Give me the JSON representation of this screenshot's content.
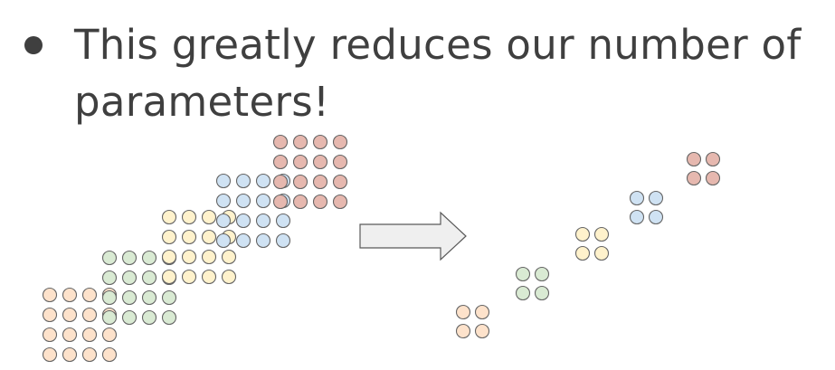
{
  "bullet_text": "This greatly reduces our number of parameters!",
  "colors": {
    "text": "#3f3f3f",
    "orange": "#fde2cb",
    "green": "#d9ead3",
    "yellow": "#fff2cc",
    "blue": "#cfe2f3",
    "red": "#e6b8af",
    "stroke": "#666666",
    "arrow_fill": "#efefef",
    "arrow_stroke": "#595959"
  },
  "diagram": {
    "left_grids": [
      {
        "color": "orange",
        "rows": 4,
        "cols": 4
      },
      {
        "color": "green",
        "rows": 4,
        "cols": 4
      },
      {
        "color": "yellow",
        "rows": 4,
        "cols": 4
      },
      {
        "color": "blue",
        "rows": 4,
        "cols": 4
      },
      {
        "color": "red",
        "rows": 4,
        "cols": 4
      }
    ],
    "right_grids": [
      {
        "color": "orange",
        "rows": 2,
        "cols": 2
      },
      {
        "color": "green",
        "rows": 2,
        "cols": 2
      },
      {
        "color": "yellow",
        "rows": 2,
        "cols": 2
      },
      {
        "color": "blue",
        "rows": 2,
        "cols": 2
      },
      {
        "color": "red",
        "rows": 2,
        "cols": 2
      }
    ]
  }
}
